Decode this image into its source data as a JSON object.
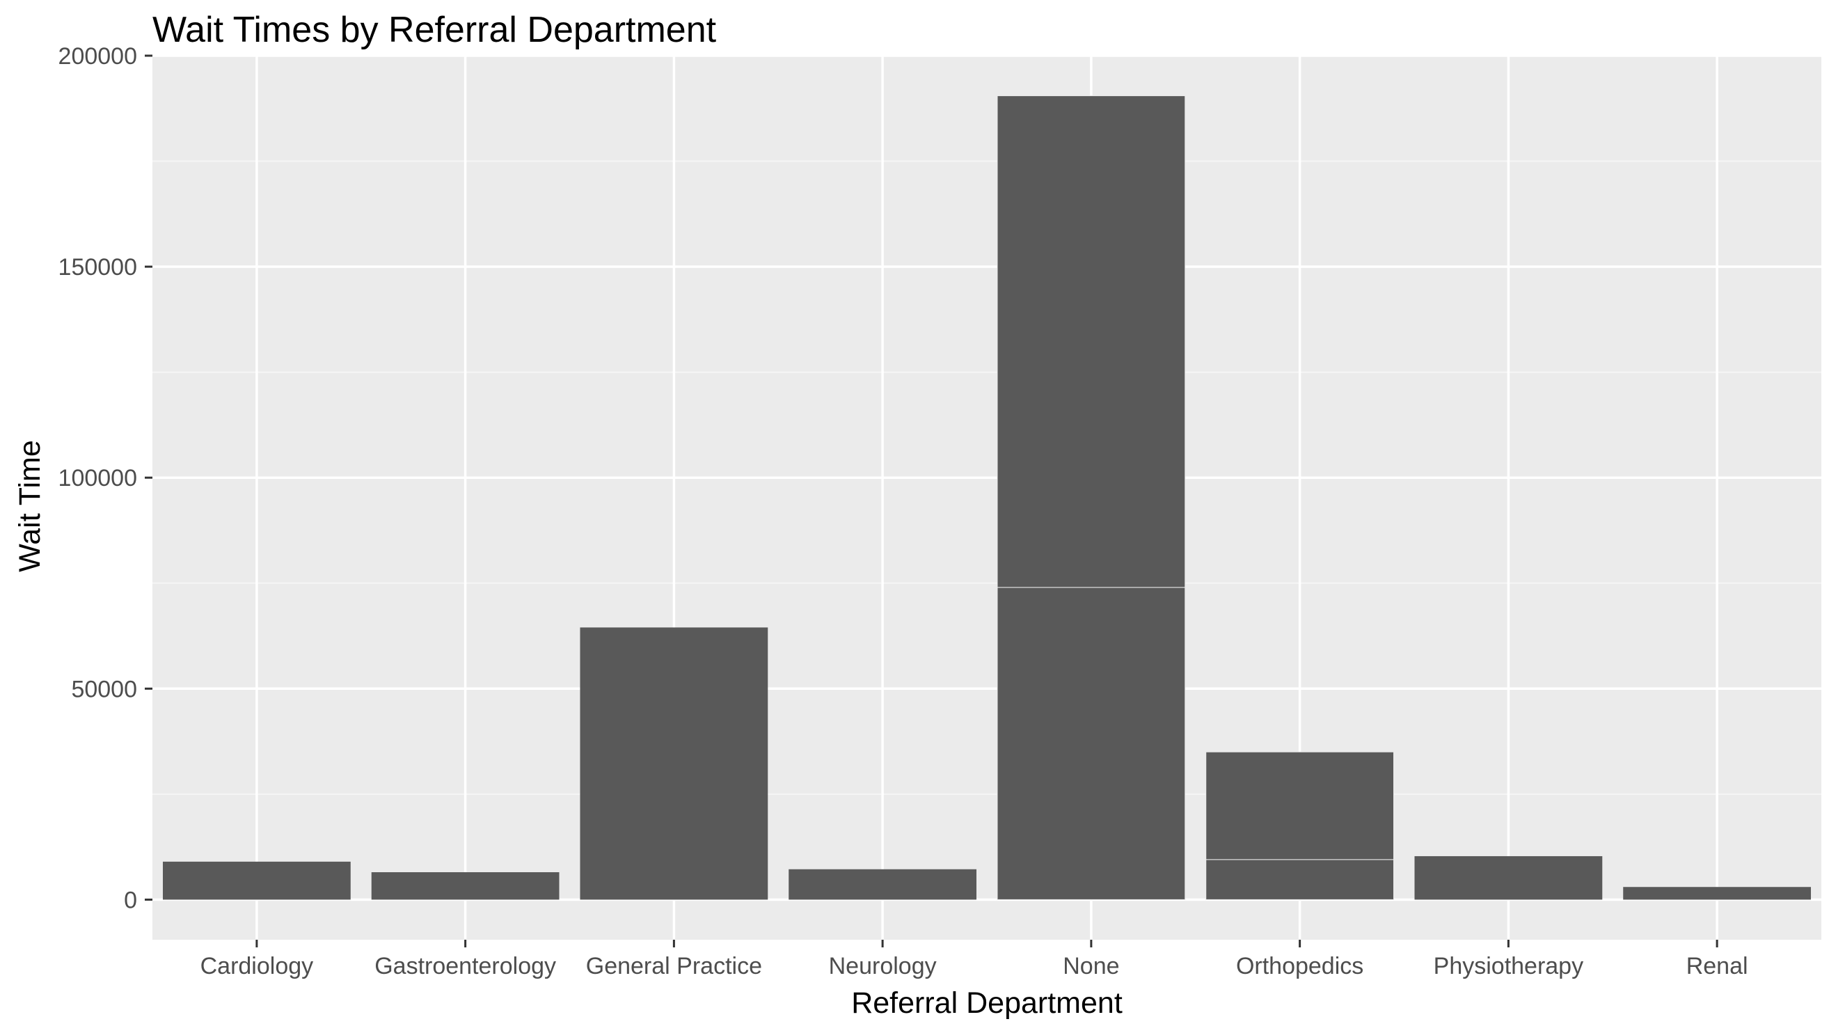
{
  "chart_data": {
    "type": "bar",
    "title": "Wait Times by Referral Department",
    "xlabel": "Referral Department",
    "ylabel": "Wait Time",
    "categories": [
      "Cardiology",
      "Gastroenterology",
      "General Practice",
      "Neurology",
      "None",
      "Orthopedics",
      "Physiotherapy",
      "Renal"
    ],
    "segments": [
      [
        9000
      ],
      [
        6500
      ],
      [
        64500
      ],
      [
        7200
      ],
      [
        74000,
        116500
      ],
      [
        9500,
        25500
      ],
      [
        10300
      ],
      [
        3000
      ]
    ],
    "values": [
      9000,
      6500,
      64500,
      7200,
      190500,
      35000,
      10300,
      3000
    ],
    "ylim": [
      -9500,
      200000
    ],
    "yticks": [
      0,
      50000,
      100000,
      150000,
      200000
    ],
    "ytick_labels": [
      "0",
      "50000",
      "100000",
      "150000",
      "200000"
    ],
    "grid": true,
    "colors": {
      "panel": "#ebebeb",
      "bar": "#595959",
      "grid_major": "#ffffff",
      "grid_minor": "#f5f5f5",
      "segment_edge": "#ebebeb",
      "tick": "#333333"
    }
  }
}
